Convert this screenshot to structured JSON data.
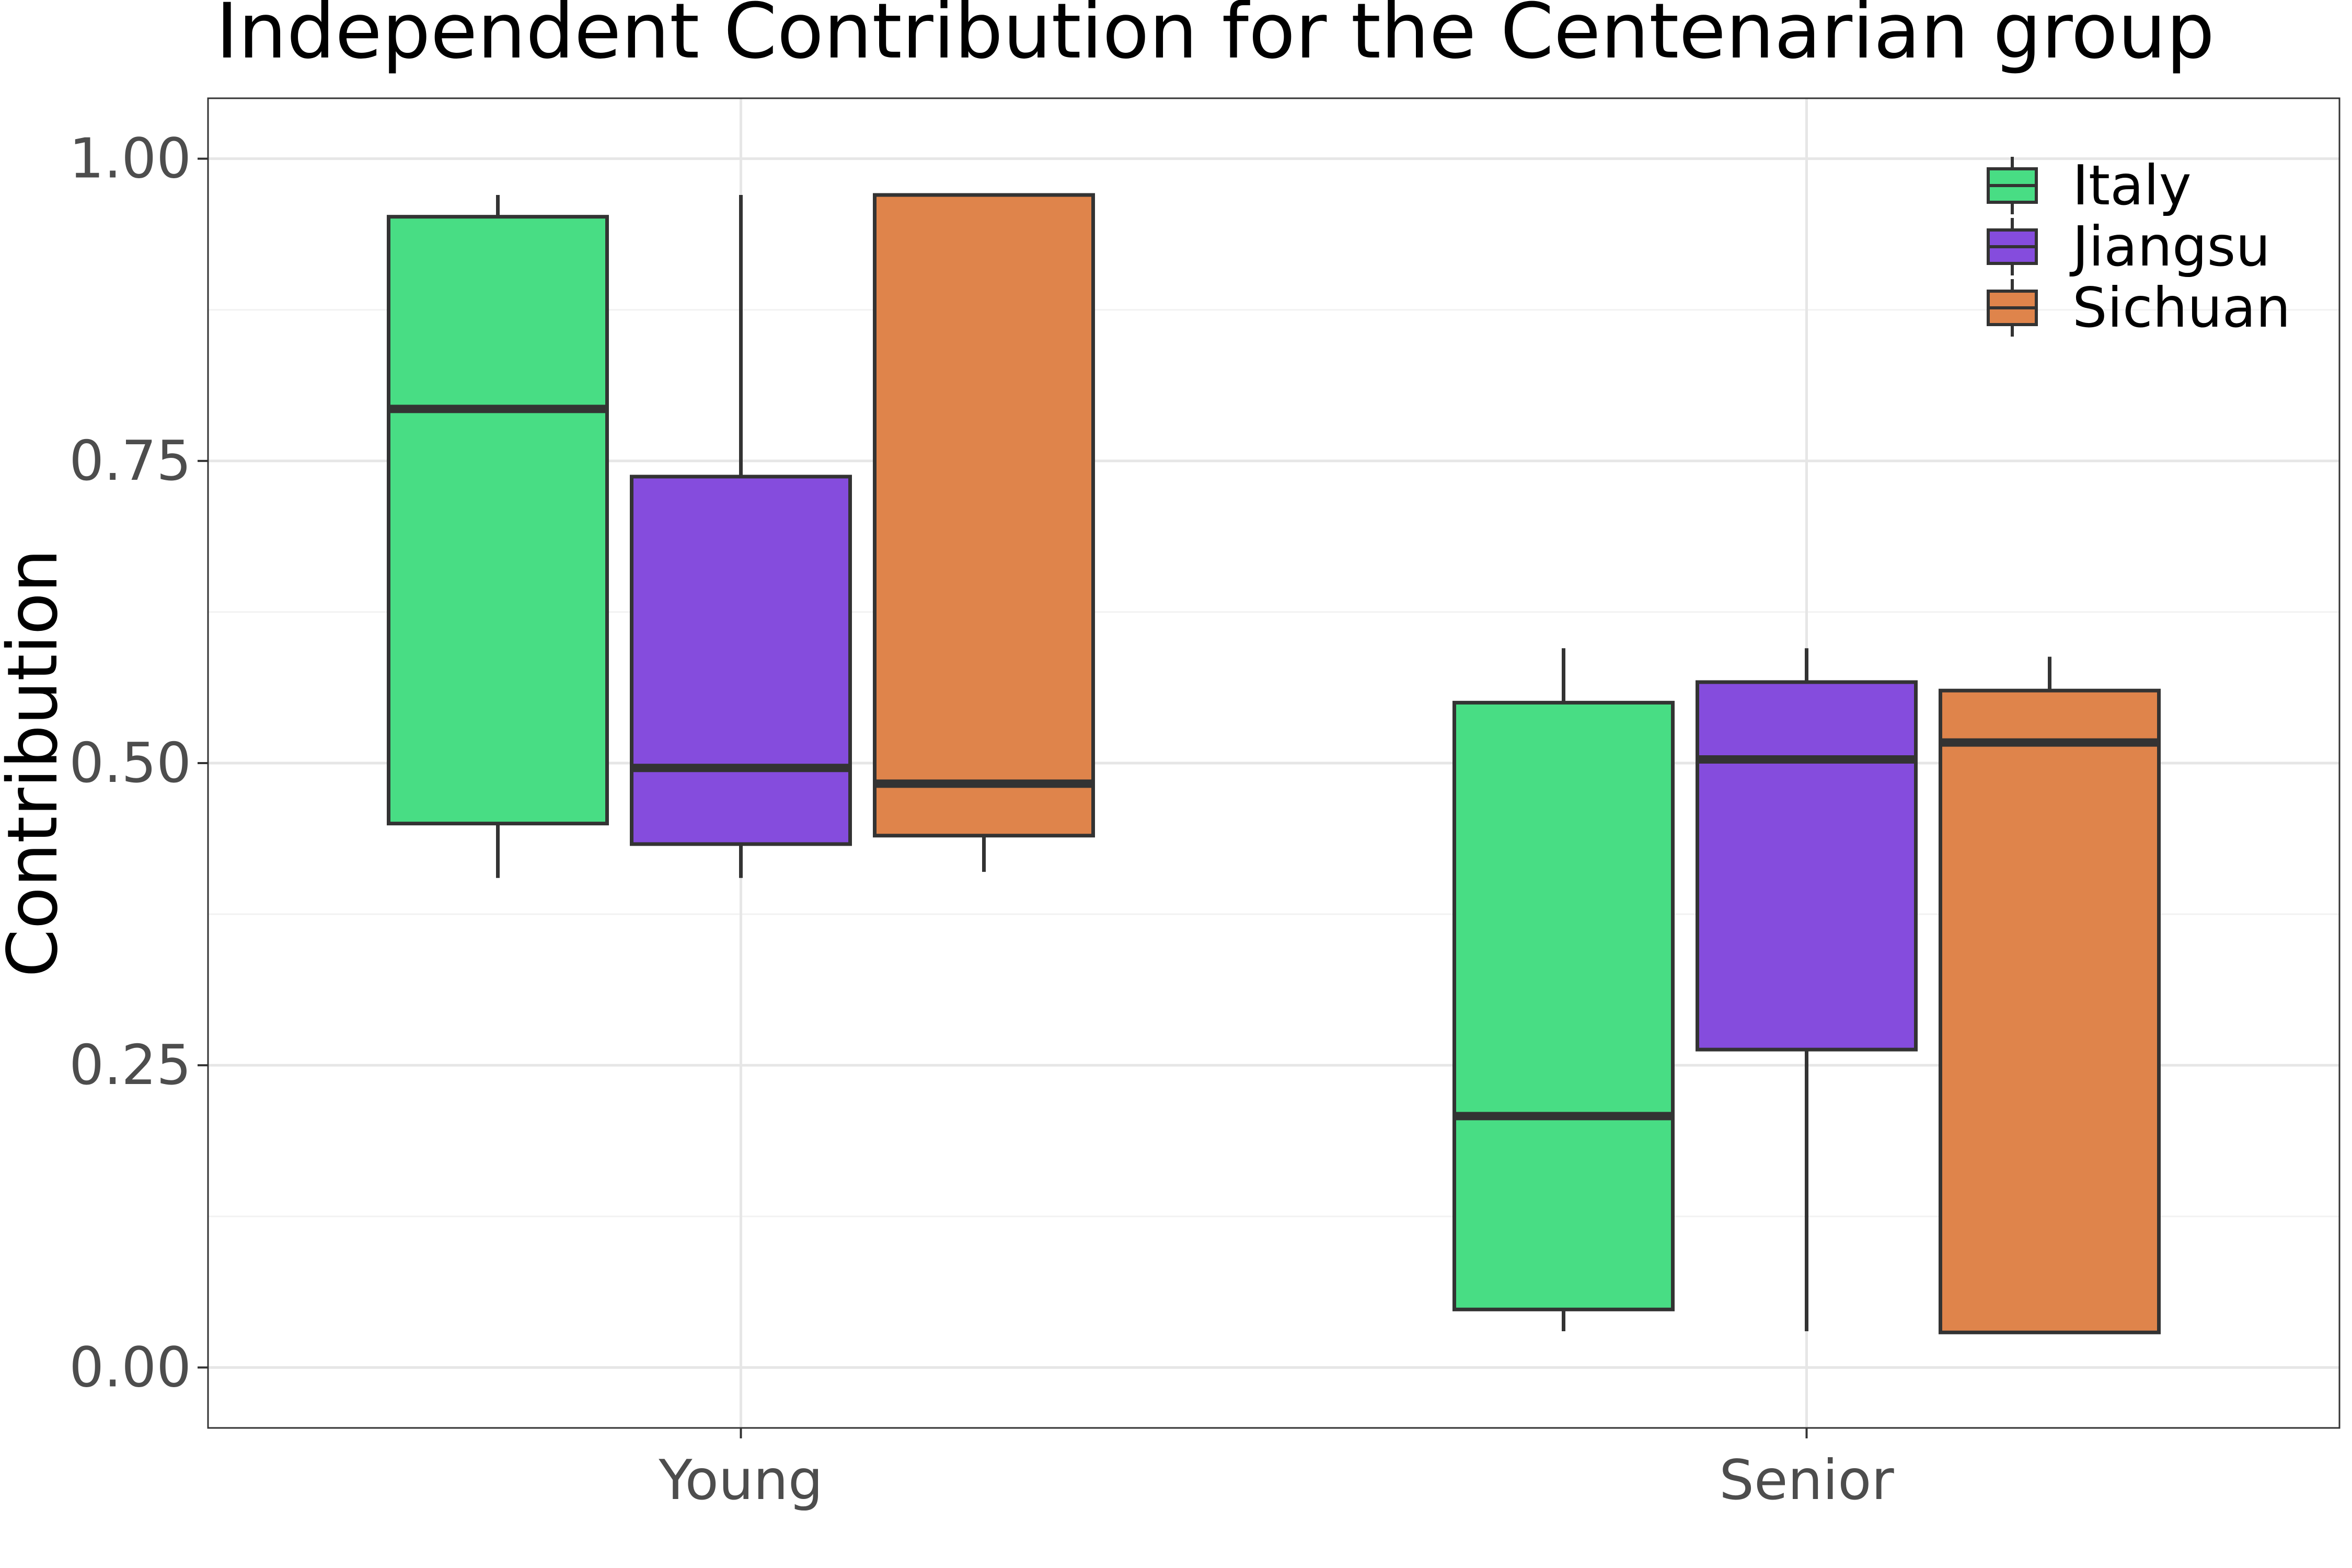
{
  "chart_data": {
    "type": "box",
    "title": "Independent Contribution for the Centenarian group",
    "xlabel": "",
    "ylabel": "Contribution",
    "ylim": [
      -0.05,
      1.05
    ],
    "yticks": [
      0.0,
      0.25,
      0.5,
      0.75,
      1.0
    ],
    "ytick_labels": [
      "0.00",
      "0.25",
      "0.50",
      "0.75",
      "1.00"
    ],
    "categories": [
      "Young",
      "Senior"
    ],
    "grid": true,
    "legend_position": "top-right",
    "series": [
      {
        "name": "Italy",
        "color": "#48DD84",
        "boxes": [
          {
            "category": "Young",
            "whisker_low": 0.405,
            "q1": 0.45,
            "median": 0.793,
            "q3": 0.952,
            "whisker_high": 0.97
          },
          {
            "category": "Senior",
            "whisker_low": 0.03,
            "q1": 0.048,
            "median": 0.208,
            "q3": 0.55,
            "whisker_high": 0.595
          }
        ]
      },
      {
        "name": "Jiangsu",
        "color": "#854CDD",
        "boxes": [
          {
            "category": "Young",
            "whisker_low": 0.405,
            "q1": 0.433,
            "median": 0.496,
            "q3": 0.737,
            "whisker_high": 0.97
          },
          {
            "category": "Senior",
            "whisker_low": 0.03,
            "q1": 0.263,
            "median": 0.503,
            "q3": 0.567,
            "whisker_high": 0.595
          }
        ]
      },
      {
        "name": "Sichuan",
        "color": "#DF844B",
        "boxes": [
          {
            "category": "Young",
            "whisker_low": 0.41,
            "q1": 0.44,
            "median": 0.483,
            "q3": 0.97,
            "whisker_high": 0.97
          },
          {
            "category": "Senior",
            "whisker_low": 0.029,
            "q1": 0.029,
            "median": 0.517,
            "q3": 0.56,
            "whisker_high": 0.588
          }
        ]
      }
    ]
  }
}
